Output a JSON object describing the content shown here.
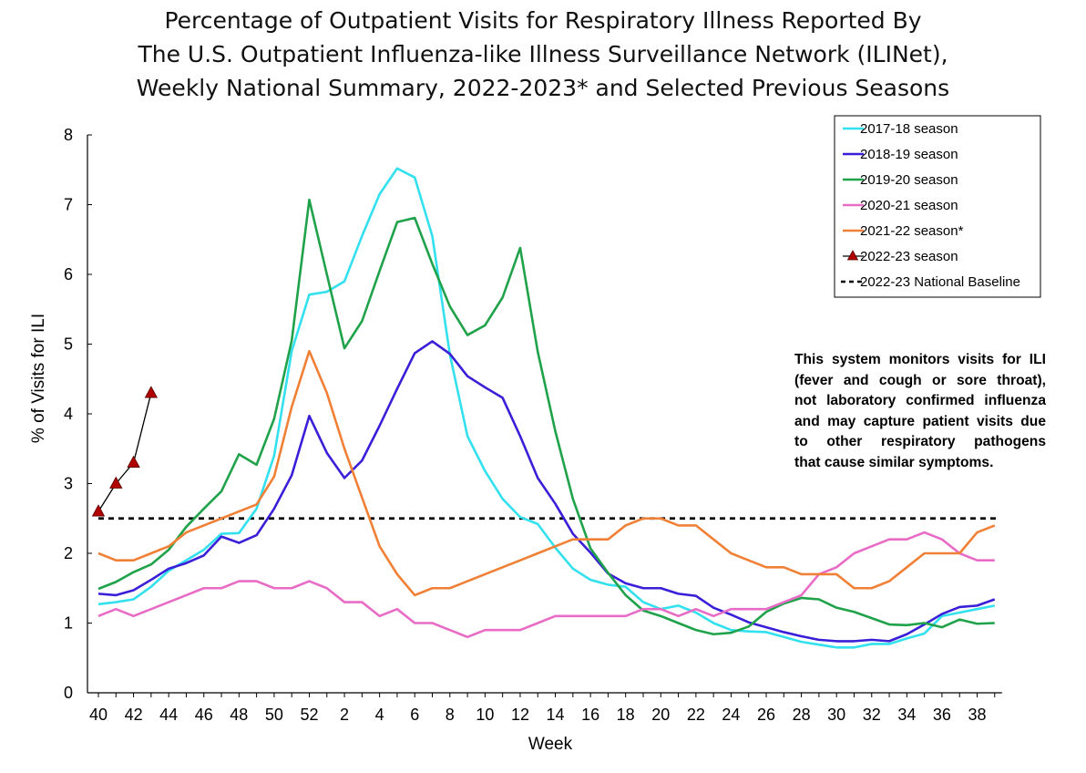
{
  "chart_data": {
    "type": "line",
    "title_lines": [
      "Percentage of Outpatient Visits for Respiratory Illness Reported By",
      "The U.S. Outpatient Influenza-like Illness Surveillance Network (ILINet),",
      "Weekly National Summary, 2022-2023* and Selected Previous Seasons"
    ],
    "xlabel": "Week",
    "ylabel": "% of Visits for ILI",
    "ylim": [
      0,
      8
    ],
    "yticks": [
      0,
      1,
      2,
      3,
      4,
      5,
      6,
      7,
      8
    ],
    "x_categories": [
      40,
      41,
      42,
      43,
      44,
      45,
      46,
      47,
      48,
      49,
      50,
      51,
      52,
      1,
      2,
      3,
      4,
      5,
      6,
      7,
      8,
      9,
      10,
      11,
      12,
      13,
      14,
      15,
      16,
      17,
      18,
      19,
      20,
      21,
      22,
      23,
      24,
      25,
      26,
      27,
      28,
      29,
      30,
      31,
      32,
      33,
      34,
      35,
      36,
      37,
      38,
      39
    ],
    "xtick_labels": [
      "40",
      "42",
      "44",
      "46",
      "48",
      "50",
      "52",
      "2",
      "4",
      "6",
      "8",
      "10",
      "12",
      "14",
      "16",
      "18",
      "20",
      "22",
      "24",
      "26",
      "28",
      "30",
      "32",
      "34",
      "36",
      "38"
    ],
    "legend_position": "top-right",
    "series": [
      {
        "name": "2017-18 season",
        "color": "#33E0EE",
        "marker": "none",
        "values": [
          1.27,
          1.3,
          1.34,
          1.52,
          1.75,
          1.9,
          2.05,
          2.28,
          2.29,
          2.64,
          3.4,
          4.9,
          5.71,
          5.75,
          5.9,
          6.55,
          7.15,
          7.52,
          7.39,
          6.55,
          4.85,
          3.68,
          3.18,
          2.78,
          2.52,
          2.42,
          2.08,
          1.78,
          1.62,
          1.55,
          1.52,
          1.3,
          1.2,
          1.25,
          1.15,
          1.0,
          0.9,
          0.88,
          0.87,
          0.8,
          0.73,
          0.69,
          0.65,
          0.65,
          0.7,
          0.7,
          0.78,
          0.85,
          1.1,
          1.15,
          1.2,
          1.25
        ]
      },
      {
        "name": "2018-19 season",
        "color": "#3A1FD8",
        "marker": "none",
        "values": [
          1.42,
          1.4,
          1.47,
          1.62,
          1.78,
          1.86,
          1.97,
          2.24,
          2.15,
          2.26,
          2.64,
          3.12,
          3.97,
          3.44,
          3.08,
          3.33,
          3.83,
          4.36,
          4.87,
          5.04,
          4.86,
          4.54,
          4.38,
          4.23,
          3.68,
          3.08,
          2.71,
          2.28,
          2.01,
          1.71,
          1.57,
          1.5,
          1.5,
          1.42,
          1.39,
          1.22,
          1.12,
          1.01,
          0.94,
          0.87,
          0.81,
          0.76,
          0.74,
          0.74,
          0.76,
          0.74,
          0.84,
          0.98,
          1.13,
          1.23,
          1.25,
          1.34
        ]
      },
      {
        "name": "2019-20 season",
        "color": "#1FA24A",
        "marker": "none",
        "values": [
          1.49,
          1.59,
          1.73,
          1.84,
          2.05,
          2.38,
          2.64,
          2.89,
          3.42,
          3.27,
          3.93,
          5.05,
          7.07,
          6.0,
          4.94,
          5.33,
          6.05,
          6.75,
          6.81,
          6.15,
          5.54,
          5.13,
          5.27,
          5.67,
          6.38,
          4.89,
          3.75,
          2.78,
          2.07,
          1.72,
          1.4,
          1.18,
          1.1,
          1.0,
          0.9,
          0.84,
          0.86,
          0.95,
          1.16,
          1.28,
          1.36,
          1.34,
          1.22,
          1.16,
          1.07,
          0.98,
          0.97,
          1.0,
          0.94,
          1.05,
          0.99,
          1.0
        ]
      },
      {
        "name": "2020-21 season",
        "color": "#E86CC6",
        "marker": "none",
        "values": [
          1.1,
          1.2,
          1.1,
          1.2,
          1.3,
          1.4,
          1.5,
          1.5,
          1.6,
          1.6,
          1.5,
          1.5,
          1.6,
          1.5,
          1.3,
          1.3,
          1.1,
          1.2,
          1.0,
          1.0,
          0.9,
          0.8,
          0.9,
          0.9,
          0.9,
          1.0,
          1.1,
          1.1,
          1.1,
          1.1,
          1.1,
          1.2,
          1.2,
          1.1,
          1.2,
          1.1,
          1.2,
          1.2,
          1.2,
          1.3,
          1.4,
          1.7,
          1.8,
          2.0,
          2.1,
          2.2,
          2.2,
          2.3,
          2.2,
          2.0,
          1.9,
          1.9
        ]
      },
      {
        "name": "2021-22 season*",
        "color": "#F08036",
        "marker": "none",
        "values": [
          2.0,
          1.9,
          1.9,
          2.0,
          2.1,
          2.3,
          2.4,
          2.5,
          2.6,
          2.7,
          3.1,
          4.1,
          4.9,
          4.3,
          3.5,
          2.8,
          2.1,
          1.7,
          1.4,
          1.5,
          1.5,
          1.6,
          1.7,
          1.8,
          1.9,
          2.0,
          2.1,
          2.2,
          2.2,
          2.2,
          2.4,
          2.5,
          2.5,
          2.4,
          2.4,
          2.2,
          2.0,
          1.9,
          1.8,
          1.8,
          1.7,
          1.7,
          1.7,
          1.5,
          1.5,
          1.6,
          1.8,
          2.0,
          2.0,
          2.0,
          2.3,
          2.4
        ]
      },
      {
        "name": "2022-23 season",
        "color": "#000000",
        "marker": "triangle",
        "marker_color": "#B00000",
        "values": [
          2.6,
          3.0,
          3.3,
          4.3
        ]
      },
      {
        "name": "2022-23 National Baseline",
        "color": "#000000",
        "marker": "none",
        "dash": "dashed",
        "values": [
          2.5,
          2.5,
          2.5,
          2.5,
          2.5,
          2.5,
          2.5,
          2.5,
          2.5,
          2.5,
          2.5,
          2.5,
          2.5,
          2.5,
          2.5,
          2.5,
          2.5,
          2.5,
          2.5,
          2.5,
          2.5,
          2.5,
          2.5,
          2.5,
          2.5,
          2.5,
          2.5,
          2.5,
          2.5,
          2.5,
          2.5,
          2.5,
          2.5,
          2.5,
          2.5,
          2.5,
          2.5,
          2.5,
          2.5,
          2.5,
          2.5,
          2.5,
          2.5,
          2.5,
          2.5,
          2.5,
          2.5,
          2.5,
          2.5,
          2.5,
          2.5,
          2.5
        ]
      }
    ],
    "annotation_lines": [
      "This system monitors visits for ILI",
      "(fever and cough or sore throat),",
      "not laboratory confirmed influenza",
      "and may capture patient visits due",
      "to other respiratory pathogens",
      "that cause similar symptoms."
    ]
  }
}
